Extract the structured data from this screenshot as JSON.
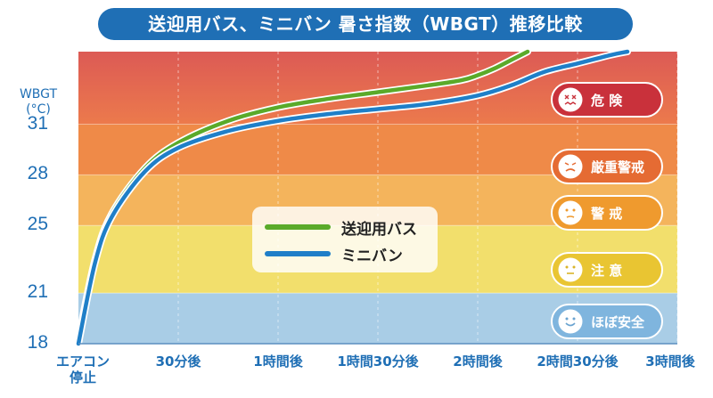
{
  "title": "送迎用バス、ミニバン 暑さ指数（WBGT）推移比較",
  "colors": {
    "title_bg": "#1f6fb5",
    "bus": "#5aaa2a",
    "minivan": "#1f7fc8",
    "zone_danger": "#e46a52",
    "zone_severe": "#ef8a48",
    "zone_warning": "#f4b45c",
    "zone_caution": "#f2df6c",
    "zone_safe": "#a9cde6"
  },
  "legend": [
    {
      "label": "送迎用バス",
      "color": "#5aaa2a"
    },
    {
      "label": "ミニバン",
      "color": "#1f7fc8"
    }
  ],
  "zones": [
    {
      "label": "危 険",
      "icon": "danger-face-icon",
      "badge_color": "#c9313b",
      "icon_color": "#c9313b"
    },
    {
      "label": "厳重警戒",
      "icon": "severe-face-icon",
      "badge_color": "#e56b33",
      "icon_color": "#e56b33"
    },
    {
      "label": "警 戒",
      "icon": "warning-face-icon",
      "badge_color": "#ef9a2e",
      "icon_color": "#ef9a2e"
    },
    {
      "label": "注 意",
      "icon": "caution-face-icon",
      "badge_color": "#e9c532",
      "icon_color": "#d9b52a"
    },
    {
      "label": "ほぼ安全",
      "icon": "safe-face-icon",
      "badge_color": "#7fb5de",
      "icon_color": "#6aa3d0"
    }
  ],
  "chart_data": {
    "type": "line",
    "ylabel": [
      "WBGT",
      "(°C)"
    ],
    "y_tick_values": [
      18,
      21,
      25,
      28,
      31
    ],
    "y_tick_labels": [
      "18",
      "21",
      "25",
      "28",
      "31"
    ],
    "ylim": [
      18,
      35.3
    ],
    "x_tick_labels": [
      "エアコン\n停止",
      "30分後",
      "1時間後",
      "1時間30分後",
      "2時間後",
      "2時間30分後",
      "3時間後"
    ],
    "xlim": [
      0,
      180
    ],
    "x_ticks_minutes": [
      0,
      30,
      60,
      90,
      120,
      150,
      180
    ],
    "grid": true,
    "zone_bounds": [
      18,
      21,
      25,
      28,
      31,
      35.3
    ],
    "series": [
      {
        "name": "送迎用バス",
        "x": [
          0,
          5,
          10,
          20,
          30,
          45,
          60,
          75,
          90,
          105,
          115,
          120,
          125,
          130,
          135
        ],
        "y": [
          18.3,
          23.0,
          25.7,
          28.4,
          29.9,
          31.2,
          32.0,
          32.5,
          32.9,
          33.3,
          33.6,
          33.9,
          34.3,
          34.8,
          35.3
        ]
      },
      {
        "name": "ミニバン",
        "x": [
          0,
          5,
          10,
          20,
          30,
          45,
          60,
          75,
          90,
          105,
          120,
          130,
          140,
          150,
          160,
          165
        ],
        "y": [
          18.0,
          22.8,
          25.5,
          28.2,
          29.6,
          30.6,
          31.2,
          31.6,
          31.9,
          32.2,
          32.7,
          33.3,
          34.1,
          34.6,
          35.1,
          35.3
        ]
      }
    ]
  }
}
